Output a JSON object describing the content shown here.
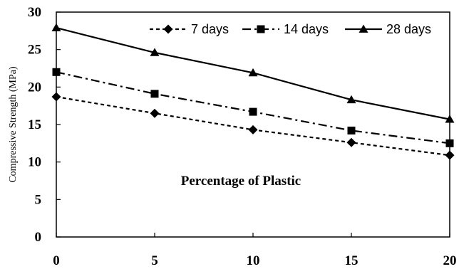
{
  "chart_data": {
    "type": "line",
    "x": [
      0,
      5,
      10,
      15,
      20
    ],
    "series": [
      {
        "name": "7 days",
        "values": [
          18.7,
          16.5,
          14.3,
          12.6,
          10.9
        ],
        "marker": "diamond",
        "dash": "short-dash"
      },
      {
        "name": "14 days",
        "values": [
          22.0,
          19.1,
          16.7,
          14.2,
          12.5
        ],
        "marker": "square",
        "dash": "dash-dot"
      },
      {
        "name": "28 days",
        "values": [
          27.9,
          24.6,
          21.9,
          18.3,
          15.7
        ],
        "marker": "triangle",
        "dash": "solid"
      }
    ],
    "xlabel": "Percentage of Plastic",
    "ylabel": "Compressive Strength (MPa)",
    "xlim": [
      0,
      20
    ],
    "ylim": [
      0,
      30
    ],
    "xticks": [
      0,
      5,
      10,
      15,
      20
    ],
    "yticks": [
      0,
      5,
      10,
      15,
      20,
      25,
      30
    ],
    "grid": false,
    "legend_position": "top-right",
    "colors": {
      "line": "#000000",
      "background": "#ffffff"
    }
  }
}
